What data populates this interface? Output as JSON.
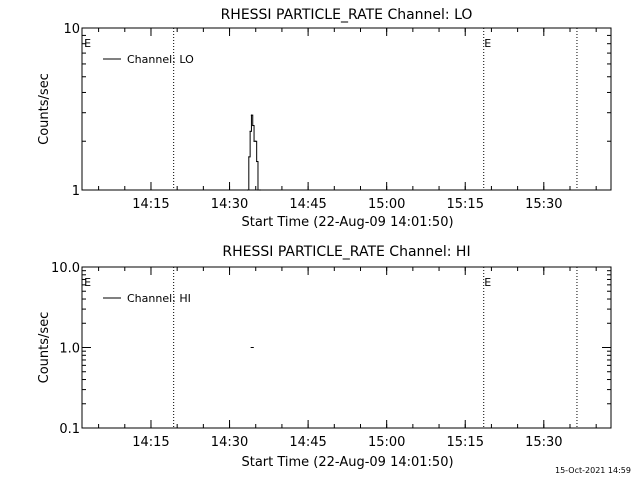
{
  "chart_data": [
    {
      "type": "line",
      "title": "RHESSI PARTICLE_RATE Channel: LO",
      "xlabel": "Start Time (22-Aug-09 14:01:50)",
      "ylabel": "Counts/sec",
      "yscale": "log",
      "ylim": [
        1,
        10
      ],
      "xlim_minutes": [
        0,
        101
      ],
      "yticks": [
        {
          "value": 1,
          "label": "1"
        },
        {
          "value": 10,
          "label": "10"
        }
      ],
      "xticks": [
        {
          "minute": 13.17,
          "label": "14:15"
        },
        {
          "minute": 28.17,
          "label": "14:30"
        },
        {
          "minute": 43.17,
          "label": "14:45"
        },
        {
          "minute": 58.17,
          "label": "15:00"
        },
        {
          "minute": 73.17,
          "label": "15:15"
        },
        {
          "minute": 88.17,
          "label": "15:30"
        }
      ],
      "legend": {
        "placement": "top-left",
        "label": "Channel: LO"
      },
      "eclipse_markers": [
        {
          "minute": 0.3,
          "label": "E"
        },
        {
          "minute": 76.7,
          "label": "E"
        }
      ],
      "dotted_lines_minutes": [
        17.5,
        76.7,
        94.5
      ],
      "series": [
        {
          "name": "Channel: LO",
          "x": [
            31.6,
            31.85,
            32.1,
            32.35,
            32.6,
            32.85,
            33.1,
            33.35,
            33.6,
            33.85,
            34.1
          ],
          "y": [
            1.0,
            1.6,
            2.3,
            2.9,
            2.5,
            2.0,
            2.0,
            1.5,
            1.0,
            1.0,
            1.0
          ]
        }
      ]
    },
    {
      "type": "line",
      "title": "RHESSI PARTICLE_RATE Channel: HI",
      "xlabel": "Start Time (22-Aug-09 14:01:50)",
      "ylabel": "Counts/sec",
      "yscale": "log",
      "ylim": [
        0.1,
        10
      ],
      "xlim_minutes": [
        0,
        101
      ],
      "yticks": [
        {
          "value": 0.1,
          "label": "0.1"
        },
        {
          "value": 1,
          "label": "1.0"
        },
        {
          "value": 10,
          "label": "10.0"
        }
      ],
      "xticks": [
        {
          "minute": 13.17,
          "label": "14:15"
        },
        {
          "minute": 28.17,
          "label": "14:30"
        },
        {
          "minute": 43.17,
          "label": "14:45"
        },
        {
          "minute": 58.17,
          "label": "15:00"
        },
        {
          "minute": 73.17,
          "label": "15:15"
        },
        {
          "minute": 88.17,
          "label": "15:30"
        }
      ],
      "legend": {
        "placement": "top-left",
        "label": "Channel: HI"
      },
      "eclipse_markers": [
        {
          "minute": 0.3,
          "label": "E"
        },
        {
          "minute": 76.7,
          "label": "E"
        }
      ],
      "dotted_lines_minutes": [
        17.5,
        76.7,
        94.5
      ],
      "series": [
        {
          "name": "Channel: HI",
          "x": [
            32.2,
            32.8
          ],
          "y": [
            1.0,
            1.0
          ]
        }
      ]
    }
  ],
  "footer": {
    "timestamp": "15-Oct-2021 14:59"
  }
}
